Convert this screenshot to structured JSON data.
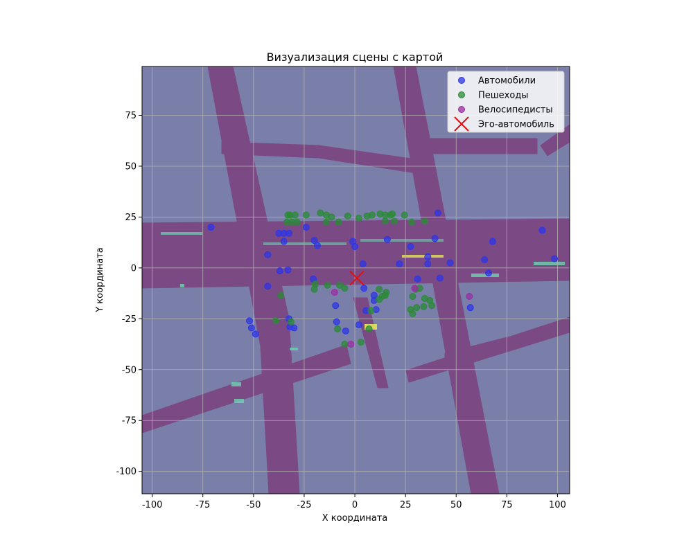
{
  "chart_data": {
    "type": "scatter",
    "title": "Визуализация сцены с картой",
    "xlabel": "X координата",
    "ylabel": "Y координата",
    "xlim": [
      -105,
      106
    ],
    "ylim": [
      -111,
      99
    ],
    "xticks": [
      -100,
      -75,
      -50,
      -25,
      0,
      25,
      50,
      75,
      100
    ],
    "yticks": [
      -100,
      -75,
      -50,
      -25,
      0,
      25,
      50,
      75
    ],
    "grid": true,
    "legend_position": "top-right",
    "map_colors": {
      "background": "#7a7faa",
      "road": "#7b4a84",
      "lane_marker_light": "#6fd3b3",
      "lane_marker_bright": "#e5e55a"
    },
    "series": [
      {
        "name": "Автомобили",
        "color": "#2d36e6",
        "marker": "circle",
        "points": [
          [
            -71,
            20
          ],
          [
            -24,
            20
          ],
          [
            -37.5,
            17
          ],
          [
            -35,
            17
          ],
          [
            -32.5,
            17
          ],
          [
            -35,
            13
          ],
          [
            -20,
            13.5
          ],
          [
            -18.5,
            11
          ],
          [
            -43,
            6.5
          ],
          [
            -1,
            13
          ],
          [
            0,
            10.5
          ],
          [
            16,
            14
          ],
          [
            27.5,
            10.5
          ],
          [
            39.5,
            14.5
          ],
          [
            41,
            27
          ],
          [
            68,
            13
          ],
          [
            92.5,
            18.5
          ],
          [
            98.5,
            4.5
          ],
          [
            4,
            2
          ],
          [
            22,
            2
          ],
          [
            36,
            5.5
          ],
          [
            36,
            2
          ],
          [
            47,
            2.5
          ],
          [
            64,
            4
          ],
          [
            66,
            -2.5
          ],
          [
            -37,
            -1.5
          ],
          [
            -33,
            -1
          ],
          [
            -43,
            -9
          ],
          [
            -20.5,
            -5.5
          ],
          [
            4.5,
            -10
          ],
          [
            9.5,
            -13.5
          ],
          [
            9.5,
            -16
          ],
          [
            31,
            -5.5
          ],
          [
            42,
            -5
          ],
          [
            57,
            -19.5
          ],
          [
            -9.5,
            -18.5
          ],
          [
            10.5,
            -20.5
          ],
          [
            5.5,
            -21
          ],
          [
            -52,
            -26
          ],
          [
            -51,
            -29.5
          ],
          [
            -49,
            -32.5
          ],
          [
            -32.5,
            -25
          ],
          [
            -32,
            -29
          ],
          [
            -30,
            -29.5
          ],
          [
            -9,
            -26.5
          ],
          [
            -4.5,
            -31
          ],
          [
            2,
            -28
          ]
        ]
      },
      {
        "name": "Пешеходы",
        "color": "#2a8a35",
        "marker": "circle",
        "points": [
          [
            -33,
            26
          ],
          [
            -32,
            26
          ],
          [
            -29.5,
            26
          ],
          [
            -24,
            26
          ],
          [
            -17,
            27
          ],
          [
            -14,
            26
          ],
          [
            -11.5,
            25
          ],
          [
            -3.5,
            25.5
          ],
          [
            2,
            24.5
          ],
          [
            6,
            25.5
          ],
          [
            8.5,
            26
          ],
          [
            12.5,
            26.5
          ],
          [
            15,
            26
          ],
          [
            17.5,
            26
          ],
          [
            18.5,
            26.5
          ],
          [
            24.5,
            26
          ],
          [
            -33.5,
            22.5
          ],
          [
            -31,
            22.5
          ],
          [
            -28.5,
            22.5
          ],
          [
            -14,
            22.5
          ],
          [
            -8,
            22.5
          ],
          [
            15,
            23
          ],
          [
            19.5,
            23
          ],
          [
            28,
            22.5
          ],
          [
            34.5,
            23
          ],
          [
            -19.5,
            -8
          ],
          [
            -20,
            -10.5
          ],
          [
            -13.5,
            -8.5
          ],
          [
            -7.5,
            -8.5
          ],
          [
            -5,
            -10
          ],
          [
            -36.5,
            -13.5
          ],
          [
            12,
            -10.5
          ],
          [
            13.5,
            -14
          ],
          [
            15,
            -13.5
          ],
          [
            15.5,
            -12
          ],
          [
            12,
            -15.5
          ],
          [
            28.5,
            -14
          ],
          [
            30,
            -10.5
          ],
          [
            32,
            -10
          ],
          [
            34.5,
            -15
          ],
          [
            37,
            -16
          ],
          [
            38,
            -18.5
          ],
          [
            34,
            -19
          ],
          [
            30.5,
            -19.5
          ],
          [
            27.5,
            -20.5
          ],
          [
            28.5,
            -22.5
          ],
          [
            8,
            -21
          ],
          [
            -39,
            -26
          ],
          [
            -31.5,
            -26.5
          ],
          [
            -8.5,
            -30
          ],
          [
            -5,
            -37.5
          ],
          [
            3,
            -36.5
          ],
          [
            7,
            -30
          ]
        ]
      },
      {
        "name": "Велосипедисты",
        "color": "#9a2ea2",
        "marker": "circle",
        "points": [
          [
            -10,
            -12
          ],
          [
            29.5,
            -10
          ],
          [
            56.5,
            -14
          ],
          [
            -2,
            -37.5
          ]
        ]
      },
      {
        "name": "Эго-автомобиль",
        "color": "#e01010",
        "marker": "x",
        "points": [
          [
            1,
            -5
          ]
        ]
      }
    ]
  }
}
